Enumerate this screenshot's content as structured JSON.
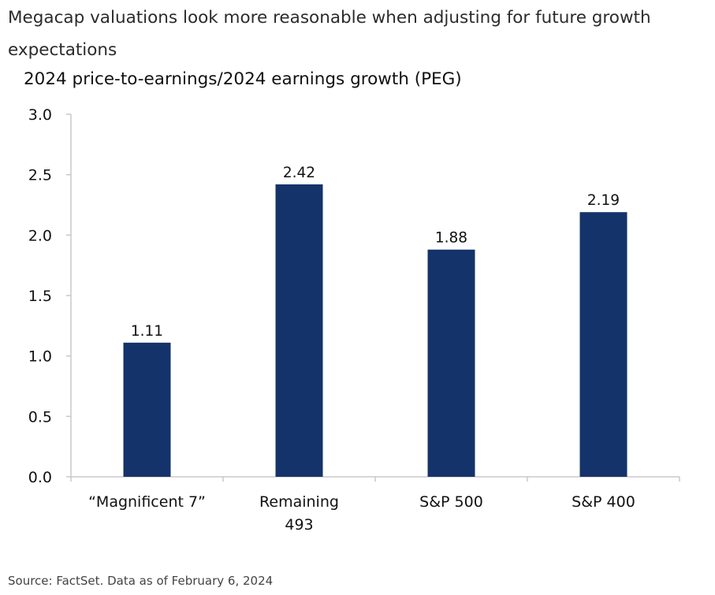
{
  "header": {
    "title": "Megacap valuations look more reasonable when adjusting for future growth expectations"
  },
  "chart_data": {
    "type": "bar",
    "title": "2024 price-to-earnings/2024 earnings growth (PEG)",
    "categories": [
      [
        "“Magnificent 7”"
      ],
      [
        "Remaining",
        "493"
      ],
      [
        "S&P 500"
      ],
      [
        "S&P 400"
      ]
    ],
    "values": [
      1.11,
      2.42,
      1.88,
      2.19
    ],
    "data_labels": [
      "1.11",
      "2.42",
      "1.88",
      "2.19"
    ],
    "ylim": [
      0,
      3.0
    ],
    "yticks": [
      "0.0",
      "0.5",
      "1.0",
      "1.5",
      "2.0",
      "2.5",
      "3.0"
    ],
    "xlabel": "",
    "ylabel": "",
    "grid": false,
    "bar_color": "#14336b"
  },
  "footer": {
    "source": "Source: FactSet. Data as of February 6, 2024"
  }
}
